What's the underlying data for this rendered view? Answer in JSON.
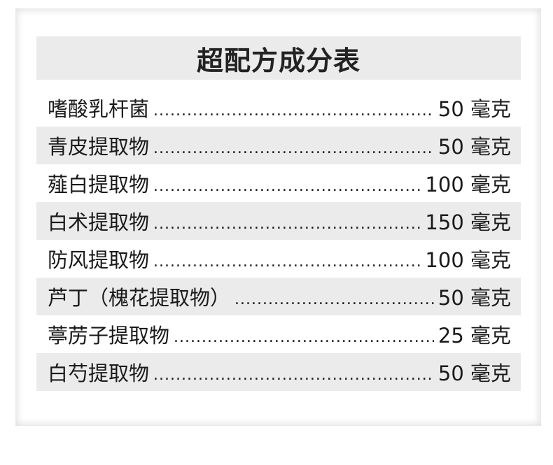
{
  "title": "超配方成分表",
  "items": [
    {
      "name": "嗜酸乳杆菌",
      "amount": "50 毫克"
    },
    {
      "name": "青皮提取物",
      "amount": "50 毫克"
    },
    {
      "name": "薤白提取物",
      "amount": "100 毫克"
    },
    {
      "name": "白术提取物",
      "amount": "150 毫克"
    },
    {
      "name": "防风提取物",
      "amount": "100 毫克"
    },
    {
      "name": "芦丁（槐花提取物）",
      "amount": "50 毫克"
    },
    {
      "name": "葶苈子提取物",
      "amount": "25 毫克"
    },
    {
      "name": "白芍提取物",
      "amount": "50 毫克"
    }
  ]
}
